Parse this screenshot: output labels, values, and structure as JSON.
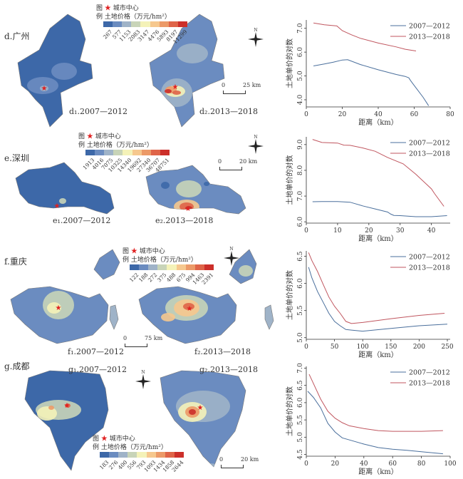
{
  "legend_common": {
    "tu": "图",
    "li": "例",
    "center_label": "城市中心",
    "price_label": "土地价格（万元/hm²）"
  },
  "ramp_colors": [
    "#3d68a8",
    "#6b8cc0",
    "#9fb3c8",
    "#c8d4b8",
    "#f4f2b8",
    "#f6c88e",
    "#ec9a68",
    "#df6448",
    "#cc2f2a"
  ],
  "panels": [
    {
      "key": "d",
      "title": "d.广州",
      "sub1": "d₁.2007—2012",
      "sub2": "d₂.2013—2018",
      "breaks": [
        "267",
        "577",
        "1153",
        "2083",
        "3147",
        "4476",
        "5893",
        "8197",
        "11299"
      ],
      "scale": {
        "zero": "0",
        "dist": "25 km"
      }
    },
    {
      "key": "e",
      "title": "e.深圳",
      "sub1": "e₁.2007—2012",
      "sub2": "e₂.2013—2018",
      "breaks": [
        "1913",
        "4016",
        "7075",
        "10325",
        "14340",
        "19692",
        "27340",
        "36707",
        "48751"
      ],
      "scale": {
        "zero": "0",
        "dist": "20 km"
      }
    },
    {
      "key": "f",
      "title": "f.重庆",
      "sub1": "f₁.2007—2012",
      "sub2": "f₂.2013—2018",
      "breaks": [
        "122",
        "188",
        "272",
        "375",
        "488",
        "675",
        "994",
        "1463",
        "2391"
      ],
      "scale": {
        "zero": "0",
        "dist": "75 km"
      }
    },
    {
      "key": "g",
      "title": "g.成都",
      "sub1": "g₁.2007—2012",
      "sub2": "g₂.2013—2018",
      "breaks": [
        "183",
        "276",
        "400",
        "556",
        "793",
        "1093",
        "1434",
        "1858",
        "2644"
      ],
      "scale": {
        "zero": "0",
        "dist": "20 km"
      }
    }
  ],
  "compass_label": "N",
  "chart_data": [
    {
      "type": "line",
      "title": "",
      "xlabel": "距离（km）",
      "ylabel": "土地单价的对数",
      "xlim": [
        0,
        80
      ],
      "ylim": [
        3.7,
        7.35
      ],
      "xticks": [
        0,
        20,
        40,
        60,
        80
      ],
      "yticks": [
        4.0,
        5.0,
        6.0,
        7.0
      ],
      "legend": "top-right",
      "series": [
        {
          "name": "2007—2012",
          "color": "#4a6f9c",
          "x": [
            4,
            10,
            15,
            20,
            23,
            30,
            40,
            50,
            55,
            57,
            58,
            60,
            65,
            68
          ],
          "y": [
            5.42,
            5.5,
            5.58,
            5.67,
            5.68,
            5.48,
            5.26,
            5.06,
            4.98,
            4.92,
            4.8,
            4.6,
            4.1,
            3.75
          ]
        },
        {
          "name": "2013—2018",
          "color": "#c0565f",
          "x": [
            4,
            10,
            17,
            20,
            25,
            30,
            40,
            50,
            55,
            61
          ],
          "y": [
            7.22,
            7.15,
            7.1,
            6.9,
            6.73,
            6.58,
            6.38,
            6.22,
            6.12,
            6.05
          ]
        }
      ]
    },
    {
      "type": "line",
      "title": "",
      "xlabel": "距离（km）",
      "ylabel": "土地单价的对数",
      "xlim": [
        0,
        46
      ],
      "ylim": [
        5.95,
        9.3
      ],
      "xticks": [
        0,
        10,
        20,
        30,
        40
      ],
      "yticks": [
        6.0,
        7.0,
        8.0,
        9.0
      ],
      "legend": "top-right",
      "series": [
        {
          "name": "2007—2012",
          "color": "#4a6f9c",
          "x": [
            2,
            5,
            10,
            14,
            18,
            22,
            26,
            27,
            28,
            30,
            35,
            40,
            45
          ],
          "y": [
            6.78,
            6.79,
            6.79,
            6.76,
            6.62,
            6.5,
            6.38,
            6.3,
            6.25,
            6.24,
            6.2,
            6.2,
            6.24
          ]
        },
        {
          "name": "2013—2018",
          "color": "#c0565f",
          "x": [
            2,
            5,
            10,
            12,
            14,
            18,
            22,
            26,
            31,
            35,
            40,
            41,
            44
          ],
          "y": [
            9.2,
            9.08,
            9.06,
            8.98,
            8.97,
            8.87,
            8.74,
            8.5,
            8.25,
            7.85,
            7.28,
            7.1,
            6.6
          ]
        }
      ]
    },
    {
      "type": "line",
      "title": "",
      "xlabel": "距离（km）",
      "ylabel": "土地单价的对数",
      "xlim": [
        0,
        255
      ],
      "ylim": [
        4.97,
        6.6
      ],
      "xticks": [
        0,
        50,
        100,
        150,
        200,
        250
      ],
      "yticks": [
        5.0,
        5.5,
        6.0,
        6.5
      ],
      "legend": "top-right",
      "series": [
        {
          "name": "2007—2012",
          "color": "#4a6f9c",
          "x": [
            4,
            10,
            20,
            30,
            40,
            50,
            60,
            70,
            80,
            100,
            150,
            200,
            250
          ],
          "y": [
            6.3,
            6.1,
            5.85,
            5.65,
            5.45,
            5.3,
            5.22,
            5.15,
            5.14,
            5.12,
            5.17,
            5.22,
            5.25
          ]
        },
        {
          "name": "2013—2018",
          "color": "#c0565f",
          "x": [
            4,
            10,
            20,
            30,
            40,
            50,
            60,
            70,
            80,
            100,
            150,
            200,
            245
          ],
          "y": [
            6.57,
            6.42,
            6.22,
            5.98,
            5.75,
            5.58,
            5.45,
            5.3,
            5.26,
            5.28,
            5.35,
            5.41,
            5.45
          ]
        }
      ]
    },
    {
      "type": "line",
      "title": "",
      "xlabel": "距离（km）",
      "ylabel": "土地单价的对数",
      "xlim": [
        0,
        100
      ],
      "ylim": [
        4.45,
        7.05
      ],
      "xticks": [
        0,
        20,
        40,
        60,
        80,
        100
      ],
      "yticks": [
        4.5,
        5.0,
        5.5,
        6.0,
        6.5,
        7.0
      ],
      "legend": "top-right",
      "series": [
        {
          "name": "2007—2012",
          "color": "#4a6f9c",
          "x": [
            1,
            5,
            10,
            15,
            20,
            25,
            30,
            40,
            50,
            60,
            70,
            80,
            95
          ],
          "y": [
            6.33,
            6.15,
            5.85,
            5.4,
            5.15,
            4.98,
            4.92,
            4.8,
            4.7,
            4.65,
            4.62,
            4.58,
            4.52
          ]
        },
        {
          "name": "2013—2018",
          "color": "#c0565f",
          "x": [
            2,
            5,
            10,
            15,
            20,
            25,
            30,
            40,
            50,
            60,
            70,
            80,
            95
          ],
          "y": [
            6.82,
            6.55,
            6.1,
            5.75,
            5.55,
            5.42,
            5.33,
            5.25,
            5.19,
            5.17,
            5.17,
            5.17,
            5.19
          ]
        }
      ]
    }
  ]
}
